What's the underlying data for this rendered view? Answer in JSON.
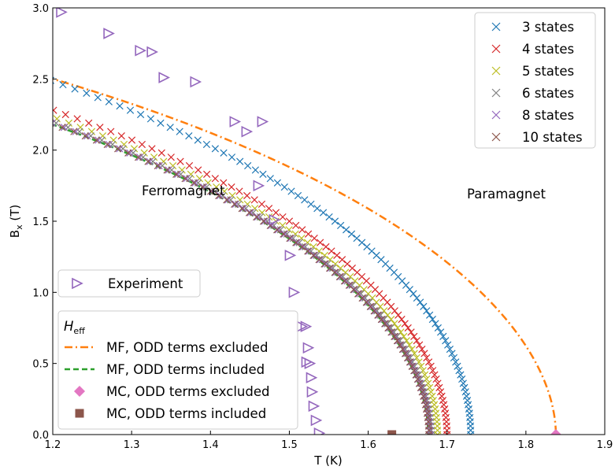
{
  "chart_data": {
    "type": "scatter",
    "xlabel": "T (K)",
    "ylabel": "B_x (T)",
    "xlim": [
      1.2,
      1.9
    ],
    "ylim": [
      0.0,
      3.0
    ],
    "xticks": [
      "1.2",
      "1.3",
      "1.4",
      "1.5",
      "1.6",
      "1.7",
      "1.8",
      "1.9"
    ],
    "yticks": [
      "0.0",
      "0.5",
      "1.0",
      "1.5",
      "2.0",
      "2.5",
      "3.0"
    ],
    "grid": false,
    "annotations": [
      {
        "text": "Ferromagnet",
        "x": 1.28,
        "y": 1.8
      },
      {
        "text": "Paramagnet",
        "x": 1.765,
        "y": 1.8
      }
    ],
    "state_series": [
      {
        "name": "3 states",
        "color": "#1f77b4",
        "tc": 1.73,
        "b0": 3.45,
        "p": 2.0
      },
      {
        "name": "4 states",
        "color": "#d62728",
        "tc": 1.7,
        "b0": 3.25,
        "p": 1.95
      },
      {
        "name": "5 states",
        "color": "#bcbd22",
        "tc": 1.688,
        "b0": 3.2,
        "p": 1.95
      },
      {
        "name": "6 states",
        "color": "#7f7f7f",
        "tc": 1.68,
        "b0": 3.17,
        "p": 1.95
      },
      {
        "name": "8 states",
        "color": "#9467bd",
        "tc": 1.678,
        "b0": 3.16,
        "p": 1.95
      },
      {
        "name": "10 states",
        "color": "#8c564b",
        "tc": 1.677,
        "b0": 3.155,
        "p": 1.95
      }
    ],
    "mf_curves": [
      {
        "name": "MF, ODD terms excluded",
        "color": "#ff7f0e",
        "style": "dashdot",
        "tc": 1.838,
        "b0": 3.35,
        "p": 1.9
      },
      {
        "name": "MF, ODD terms included",
        "color": "#2ca02c",
        "style": "dashed",
        "tc": 1.676,
        "b0": 3.15,
        "p": 1.95
      }
    ],
    "mc_points": [
      {
        "name": "MC, ODD terms excluded",
        "color": "#e377c2",
        "marker": "diamond",
        "x": 1.838,
        "y": 0.0
      },
      {
        "name": "MC, ODD terms included",
        "color": "#8c564b",
        "marker": "square",
        "x": 1.63,
        "y": 0.0
      }
    ],
    "experiment": {
      "name": "Experiment",
      "color": "#9467bd",
      "marker": "triangle-right",
      "points": [
        [
          1.21,
          2.97
        ],
        [
          1.27,
          2.82
        ],
        [
          1.31,
          2.7
        ],
        [
          1.325,
          2.69
        ],
        [
          1.34,
          2.51
        ],
        [
          1.38,
          2.48
        ],
        [
          1.43,
          2.2
        ],
        [
          1.445,
          2.13
        ],
        [
          1.465,
          2.2
        ],
        [
          1.46,
          1.75
        ],
        [
          1.48,
          1.51
        ],
        [
          1.5,
          1.26
        ],
        [
          1.505,
          1.0
        ],
        [
          1.515,
          0.76
        ],
        [
          1.52,
          0.76
        ],
        [
          1.523,
          0.61
        ],
        [
          1.521,
          0.51
        ],
        [
          1.525,
          0.5
        ],
        [
          1.527,
          0.4
        ],
        [
          1.528,
          0.3
        ],
        [
          1.53,
          0.2
        ],
        [
          1.533,
          0.1
        ],
        [
          1.537,
          0.01
        ]
      ]
    },
    "legend_states": {
      "position": "upper right",
      "entries": [
        "3 states",
        "4 states",
        "5 states",
        "6 states",
        "8 states",
        "10 states"
      ]
    },
    "legend_experiment": {
      "position": "center left",
      "entries": [
        "Experiment"
      ]
    },
    "legend_heff": {
      "position": "lower left",
      "title": "H_eff",
      "entries": [
        "MF, ODD terms excluded",
        "MF, ODD terms included",
        "MC, ODD terms excluded",
        "MC, ODD terms included"
      ]
    }
  }
}
